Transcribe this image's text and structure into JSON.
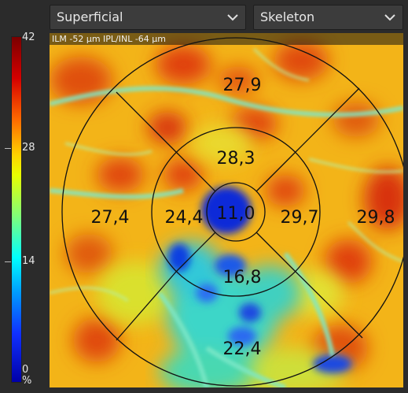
{
  "dropdowns": {
    "slab": "Superficial",
    "mode": "Skeleton"
  },
  "banner": {
    "text": "ILM -52 µm  IPL/INL -64 µm"
  },
  "scale": {
    "max": "42",
    "mid_high": "28",
    "mid_low": "14",
    "min": "0",
    "unit": "%",
    "gradient_colors": [
      "#7a0000",
      "#d40000",
      "#ff6a00",
      "#ffd000",
      "#e8ff00",
      "#7fff7a",
      "#00ffff",
      "#009cff",
      "#1030ff",
      "#0000a8"
    ]
  },
  "sectors": {
    "center": "11,0",
    "inner_top": "28,3",
    "inner_left": "24,4",
    "inner_right": "29,7",
    "inner_bottom": "16,8",
    "outer_top": "27,9",
    "outer_left": "27,4",
    "outer_right": "29,8",
    "outer_bottom": "22,4"
  }
}
